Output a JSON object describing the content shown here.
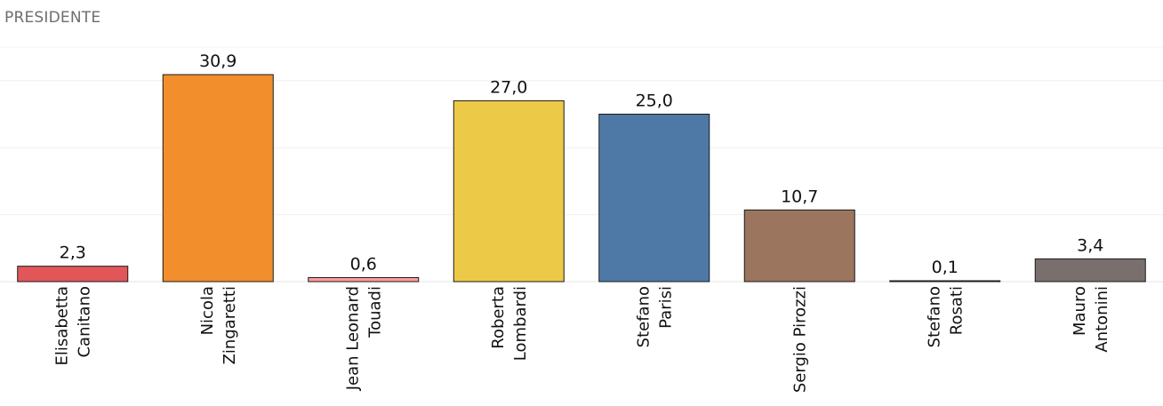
{
  "chart_data": {
    "type": "bar",
    "title": "PRESIDENTE",
    "categories": [
      [
        "Elisabetta",
        "Canitano"
      ],
      [
        "Nicola",
        "Zingaretti"
      ],
      [
        "Jean Leonard",
        "Touadi"
      ],
      [
        "Roberta",
        "Lombardi"
      ],
      [
        "Stefano",
        "Parisi"
      ],
      [
        "Sergio Pirozzi"
      ],
      [
        "Stefano",
        "Rosati"
      ],
      [
        "Mauro",
        "Antonini"
      ]
    ],
    "values": [
      2.3,
      30.9,
      0.6,
      27.0,
      25.0,
      10.7,
      0.1,
      3.4
    ],
    "value_labels": [
      "2,3",
      "30,9",
      "0,6",
      "27,0",
      "25,0",
      "10,7",
      "0,1",
      "3,4"
    ],
    "colors": [
      "#e15759",
      "#f28e2b",
      "#ff9d9a",
      "#edc948",
      "#4e79a7",
      "#9c755f",
      "#bab0ac",
      "#79706e"
    ],
    "xlabel": "",
    "ylabel": "",
    "ylim": [
      0,
      35
    ],
    "grid": true,
    "legend": "none"
  }
}
